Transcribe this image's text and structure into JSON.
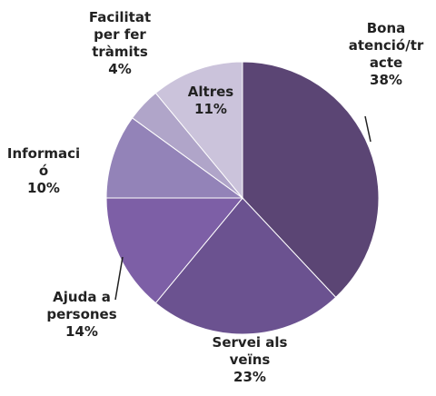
{
  "chart_data": {
    "type": "pie",
    "categories": [
      "Bona\natenció/tr\nacte",
      "Servei als\nveïns",
      "Ajuda a\npersones",
      "Informaci\nó",
      "Facilitat\nper fer\ntràmits",
      "Altres"
    ],
    "values": [
      38,
      23,
      14,
      10,
      4,
      11
    ],
    "value_labels": [
      "38%",
      "23%",
      "14%",
      "10%",
      "4%",
      "11%"
    ],
    "colors": [
      "#5b4574",
      "#6b5290",
      "#7d5fa6",
      "#9383b8",
      "#b0a5c9",
      "#cbc3db"
    ]
  }
}
